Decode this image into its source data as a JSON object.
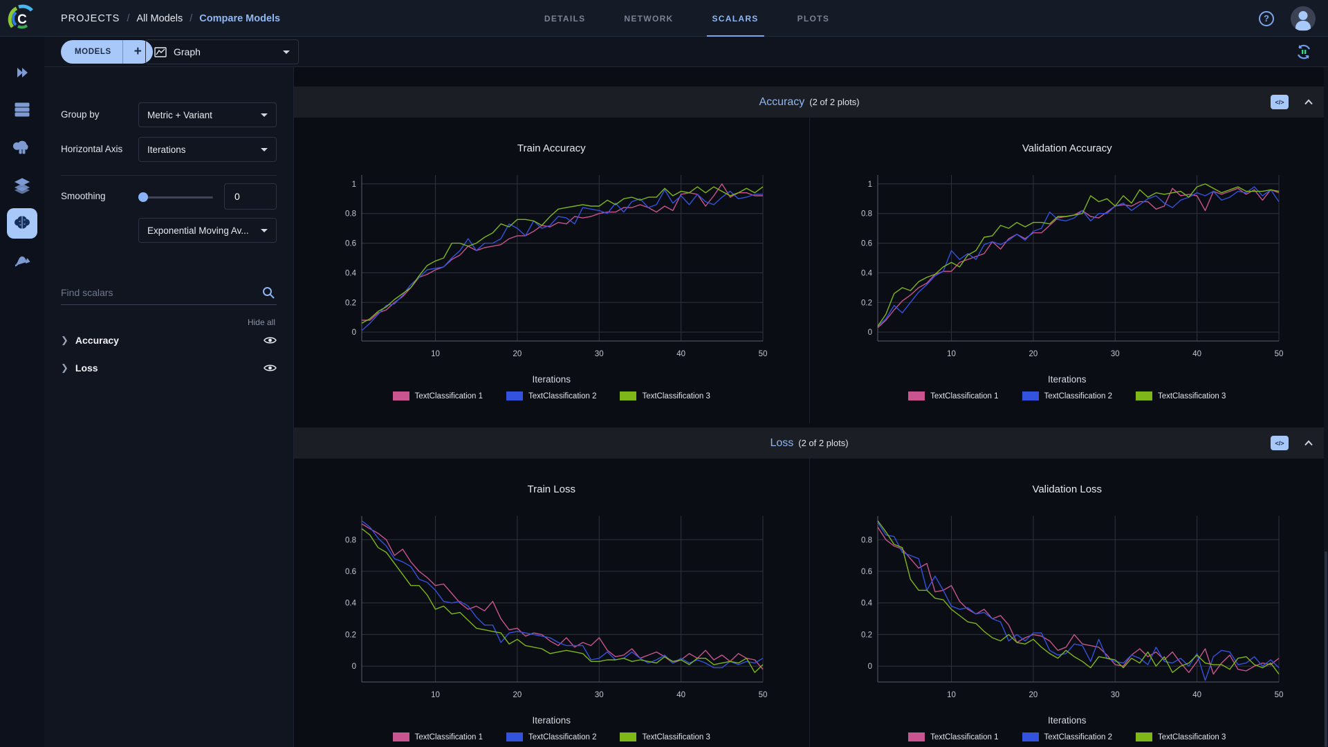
{
  "header": {
    "breadcrumb": [
      {
        "label": "PROJECTS"
      },
      {
        "label": "All Models"
      },
      {
        "label": "Compare Models"
      }
    ],
    "separator": "/",
    "tabs": [
      {
        "label": "DETAILS",
        "active": false
      },
      {
        "label": "NETWORK",
        "active": false
      },
      {
        "label": "SCALARS",
        "active": true
      },
      {
        "label": "PLOTS",
        "active": false
      }
    ]
  },
  "toolbar": {
    "models_label": "MODELS",
    "add_label": "+",
    "view_selector": "Graph"
  },
  "rail_icons": [
    "projects-icon",
    "workers-queues-icon",
    "applications-icon",
    "datasets-icon",
    "models-icon",
    "pipelines-icon"
  ],
  "controls": {
    "group_by_label": "Group by",
    "group_by_value": "Metric + Variant",
    "horizontal_axis_label": "Horizontal Axis",
    "horizontal_axis_value": "Iterations",
    "smoothing_label": "Smoothing",
    "smoothing_value": "0",
    "smoothing_method": "Exponential Moving Av...",
    "search_placeholder": "Find scalars",
    "hide_all_label": "Hide all",
    "metric_groups": [
      {
        "label": "Accuracy"
      },
      {
        "label": "Loss"
      }
    ]
  },
  "sections": [
    {
      "title": "Accuracy",
      "count": "(2 of 2 plots)",
      "code_button_label": "</>"
    },
    {
      "title": "Loss",
      "count": "(2 of 2 plots)",
      "code_button_label": "</>"
    }
  ],
  "colors": {
    "accent_blue": "#8fb8f2",
    "button_blue": "#a7c8f9",
    "series_pink": "#c9548f",
    "series_blue": "#3353de",
    "series_green": "#7fb718"
  },
  "chart_data": [
    {
      "type": "line",
      "title": "Train Accuracy",
      "xlabel": "Iterations",
      "x_start": 1,
      "xlim": [
        1,
        50
      ],
      "ylim": [
        -0.06,
        1.06
      ],
      "yticks": [
        0,
        0.2,
        0.4,
        0.6,
        0.8,
        1
      ],
      "xticks": [
        10,
        20,
        30,
        40,
        50
      ],
      "grid": true,
      "legend_position": "bottom",
      "series": [
        {
          "name": "TextClassification 1",
          "color": "#c9548f",
          "values": [
            0.08,
            0.08,
            0.13,
            0.15,
            0.2,
            0.24,
            0.3,
            0.37,
            0.39,
            0.42,
            0.44,
            0.49,
            0.52,
            0.58,
            0.55,
            0.57,
            0.58,
            0.59,
            0.63,
            0.65,
            0.65,
            0.68,
            0.72,
            0.71,
            0.74,
            0.73,
            0.78,
            0.77,
            0.78,
            0.8,
            0.81,
            0.81,
            0.84,
            0.84,
            0.86,
            0.84,
            0.81,
            0.85,
            0.82,
            0.93,
            0.94,
            0.93,
            0.85,
            0.92,
            1.0,
            0.91,
            0.94,
            0.94,
            0.92,
            0.92
          ]
        },
        {
          "name": "TextClassification 2",
          "color": "#3353de",
          "values": [
            0.01,
            0.06,
            0.12,
            0.18,
            0.19,
            0.25,
            0.32,
            0.37,
            0.42,
            0.43,
            0.44,
            0.5,
            0.55,
            0.63,
            0.55,
            0.6,
            0.6,
            0.63,
            0.73,
            0.7,
            0.65,
            0.75,
            0.7,
            0.72,
            0.78,
            0.77,
            0.73,
            0.84,
            0.83,
            0.82,
            0.8,
            0.87,
            0.81,
            0.88,
            0.9,
            0.84,
            0.86,
            0.96,
            0.87,
            0.92,
            0.86,
            0.93,
            0.88,
            0.86,
            0.91,
            0.95,
            0.9,
            0.91,
            0.93,
            0.93
          ]
        },
        {
          "name": "TextClassification 3",
          "color": "#7fb718",
          "values": [
            0.06,
            0.09,
            0.14,
            0.17,
            0.22,
            0.26,
            0.3,
            0.38,
            0.45,
            0.48,
            0.5,
            0.6,
            0.6,
            0.58,
            0.6,
            0.64,
            0.67,
            0.73,
            0.71,
            0.76,
            0.76,
            0.75,
            0.72,
            0.78,
            0.83,
            0.84,
            0.85,
            0.86,
            0.85,
            0.85,
            0.89,
            0.86,
            0.9,
            0.91,
            0.89,
            0.91,
            0.91,
            0.97,
            0.92,
            0.95,
            0.94,
            0.98,
            0.94,
            0.98,
            0.95,
            0.92,
            0.94,
            0.97,
            0.94,
            0.98
          ]
        }
      ]
    },
    {
      "type": "line",
      "title": "Validation Accuracy",
      "xlabel": "Iterations",
      "x_start": 1,
      "xlim": [
        1,
        50
      ],
      "ylim": [
        -0.06,
        1.06
      ],
      "yticks": [
        0,
        0.2,
        0.4,
        0.6,
        0.8,
        1
      ],
      "xticks": [
        10,
        20,
        30,
        40,
        50
      ],
      "grid": true,
      "legend_position": "bottom",
      "series": [
        {
          "name": "TextClassification 1",
          "color": "#c9548f",
          "values": [
            0.03,
            0.08,
            0.15,
            0.21,
            0.25,
            0.3,
            0.33,
            0.39,
            0.41,
            0.41,
            0.47,
            0.49,
            0.51,
            0.53,
            0.61,
            0.56,
            0.63,
            0.66,
            0.63,
            0.67,
            0.67,
            0.72,
            0.77,
            0.78,
            0.79,
            0.82,
            0.78,
            0.77,
            0.81,
            0.85,
            0.86,
            0.85,
            0.88,
            0.88,
            0.83,
            0.85,
            0.97,
            0.92,
            0.93,
            0.92,
            0.82,
            0.95,
            0.93,
            0.95,
            0.97,
            0.93,
            0.96,
            0.89,
            0.96,
            0.94
          ]
        },
        {
          "name": "TextClassification 2",
          "color": "#3353de",
          "values": [
            0.04,
            0.09,
            0.18,
            0.13,
            0.2,
            0.27,
            0.32,
            0.38,
            0.41,
            0.55,
            0.49,
            0.53,
            0.49,
            0.59,
            0.61,
            0.59,
            0.62,
            0.66,
            0.62,
            0.68,
            0.7,
            0.81,
            0.76,
            0.75,
            0.77,
            0.82,
            0.75,
            0.8,
            0.8,
            0.85,
            0.87,
            0.82,
            0.86,
            0.9,
            0.92,
            0.87,
            0.84,
            0.89,
            0.91,
            0.94,
            0.92,
            0.95,
            0.89,
            0.91,
            0.95,
            0.94,
            0.98,
            0.92,
            0.96,
            0.88
          ]
        },
        {
          "name": "TextClassification 3",
          "color": "#7fb718",
          "values": [
            0.04,
            0.12,
            0.26,
            0.3,
            0.28,
            0.34,
            0.37,
            0.39,
            0.44,
            0.47,
            0.44,
            0.52,
            0.55,
            0.64,
            0.65,
            0.72,
            0.7,
            0.74,
            0.71,
            0.74,
            0.74,
            0.73,
            0.78,
            0.78,
            0.79,
            0.8,
            0.92,
            0.88,
            0.9,
            0.85,
            0.92,
            0.87,
            0.96,
            0.91,
            0.94,
            0.93,
            0.94,
            0.95,
            0.91,
            0.98,
            1.0,
            0.97,
            0.94,
            0.96,
            0.98,
            0.95,
            0.95,
            0.95,
            0.96,
            0.95
          ]
        }
      ]
    },
    {
      "type": "line",
      "title": "Train Loss",
      "xlabel": "Iterations",
      "x_start": 1,
      "xlim": [
        1,
        50
      ],
      "ylim": [
        -0.1,
        0.95
      ],
      "yticks": [
        0,
        0.2,
        0.4,
        0.6,
        0.8
      ],
      "xticks": [
        10,
        20,
        30,
        40,
        50
      ],
      "grid": true,
      "legend_position": "bottom",
      "series": [
        {
          "name": "TextClassification 1",
          "color": "#c9548f",
          "values": [
            0.9,
            0.87,
            0.84,
            0.8,
            0.7,
            0.74,
            0.66,
            0.6,
            0.56,
            0.51,
            0.52,
            0.46,
            0.4,
            0.36,
            0.38,
            0.35,
            0.41,
            0.3,
            0.23,
            0.24,
            0.19,
            0.21,
            0.2,
            0.16,
            0.13,
            0.18,
            0.12,
            0.15,
            0.13,
            0.18,
            0.1,
            0.06,
            0.07,
            0.11,
            0.05,
            0.07,
            0.09,
            0.06,
            0.02,
            0.04,
            0.08,
            0.05,
            0.1,
            0.04,
            0.07,
            0.03,
            0.08,
            0.05,
            0.04,
            -0.02
          ]
        },
        {
          "name": "TextClassification 2",
          "color": "#3353de",
          "values": [
            0.92,
            0.88,
            0.81,
            0.76,
            0.68,
            0.66,
            0.63,
            0.55,
            0.53,
            0.48,
            0.41,
            0.4,
            0.41,
            0.38,
            0.31,
            0.26,
            0.26,
            0.15,
            0.21,
            0.22,
            0.21,
            0.2,
            0.19,
            0.18,
            0.15,
            0.13,
            0.13,
            0.13,
            0.04,
            0.05,
            0.09,
            0.04,
            0.05,
            0.09,
            0.05,
            0.02,
            0.04,
            0.07,
            0.02,
            0.05,
            0.02,
            0.04,
            0.02,
            -0.01,
            -0.01,
            0.03,
            0.01,
            0.03,
            0.02,
            0.05
          ]
        },
        {
          "name": "TextClassification 3",
          "color": "#7fb718",
          "values": [
            0.87,
            0.83,
            0.75,
            0.72,
            0.65,
            0.58,
            0.51,
            0.51,
            0.45,
            0.36,
            0.38,
            0.33,
            0.34,
            0.29,
            0.24,
            0.23,
            0.22,
            0.21,
            0.14,
            0.17,
            0.13,
            0.12,
            0.11,
            0.08,
            0.09,
            0.1,
            0.09,
            0.08,
            0.03,
            0.03,
            0.04,
            0.04,
            0.05,
            0.03,
            0.04,
            0.03,
            0.02,
            0.06,
            0.03,
            0.04,
            0.01,
            0.05,
            0.05,
            0.01,
            0.02,
            0.03,
            0.02,
            0.05,
            -0.04,
            0.01
          ]
        }
      ]
    },
    {
      "type": "line",
      "title": "Validation Loss",
      "xlabel": "Iterations",
      "x_start": 1,
      "xlim": [
        1,
        50
      ],
      "ylim": [
        -0.1,
        0.95
      ],
      "yticks": [
        0,
        0.2,
        0.4,
        0.6,
        0.8
      ],
      "xticks": [
        10,
        20,
        30,
        40,
        50
      ],
      "grid": true,
      "legend_position": "bottom",
      "series": [
        {
          "name": "TextClassification 1",
          "color": "#c9548f",
          "values": [
            0.88,
            0.8,
            0.76,
            0.74,
            0.68,
            0.62,
            0.65,
            0.47,
            0.48,
            0.51,
            0.41,
            0.36,
            0.33,
            0.36,
            0.3,
            0.32,
            0.26,
            0.15,
            0.18,
            0.2,
            0.19,
            0.16,
            0.1,
            0.12,
            0.2,
            0.14,
            0.13,
            0.12,
            0.07,
            0.01,
            0.0,
            0.07,
            0.11,
            0.06,
            0.09,
            0.04,
            0.09,
            0.02,
            -0.04,
            0.03,
            0.11,
            -0.05,
            0.02,
            0.07,
            -0.02,
            -0.03,
            0.0,
            0.02,
            0.01,
            0.05
          ]
        },
        {
          "name": "TextClassification 2",
          "color": "#3353de",
          "values": [
            0.91,
            0.83,
            0.82,
            0.72,
            0.7,
            0.68,
            0.48,
            0.57,
            0.48,
            0.38,
            0.36,
            0.37,
            0.33,
            0.34,
            0.3,
            0.28,
            0.16,
            0.2,
            0.16,
            0.21,
            0.21,
            0.1,
            0.07,
            0.08,
            0.14,
            0.13,
            0.03,
            0.17,
            0.05,
            0.03,
            0.02,
            0.07,
            0.05,
            0.01,
            0.12,
            0.03,
            0.02,
            0.05,
            0.0,
            0.08,
            -0.09,
            0.06,
            0.1,
            0.09,
            0.01,
            0.02,
            0.06,
            0.0,
            0.04,
            -0.01
          ]
        },
        {
          "name": "TextClassification 3",
          "color": "#7fb718",
          "values": [
            0.92,
            0.85,
            0.77,
            0.75,
            0.55,
            0.48,
            0.48,
            0.43,
            0.42,
            0.36,
            0.32,
            0.28,
            0.27,
            0.22,
            0.18,
            0.16,
            0.2,
            0.15,
            0.14,
            0.17,
            0.12,
            0.08,
            0.05,
            0.1,
            0.06,
            0.03,
            -0.01,
            0.06,
            0.05,
            0.04,
            -0.01,
            0.05,
            0.02,
            0.09,
            0.0,
            0.06,
            -0.04,
            0.0,
            0.02,
            0.07,
            0.02,
            0.01,
            0.01,
            -0.02,
            0.05,
            0.06,
            0.01,
            -0.01,
            0.02,
            -0.05
          ]
        }
      ]
    }
  ]
}
